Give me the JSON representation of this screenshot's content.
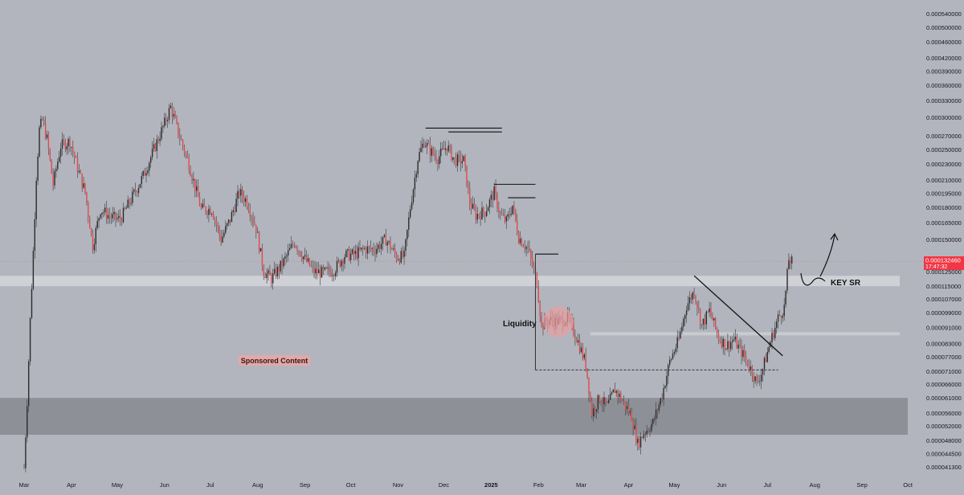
{
  "colors": {
    "background": "#b2b5be",
    "candle_up": "#2b2b2b",
    "candle_down": "#e04a4a",
    "wick": "#3a3a3a",
    "demand_zone": "#8e9097",
    "key_sr_band": "#d4d6dc",
    "support_band": "#c9cbd1",
    "last_price_tag": "#f23645",
    "liquidity_circle": "#e8a0a0",
    "sponsored_bg": "#e2a9a9"
  },
  "price_tag": {
    "price": "0.000132460",
    "countdown": "17:47:32"
  },
  "annotations": {
    "key_sr": "KEY SR",
    "liquidity": "Liquidity",
    "sponsored": "Sponsored Content"
  },
  "chart_data": {
    "type": "candlestick",
    "x_ticks": [
      "Mar",
      "Apr",
      "May",
      "Jun",
      "Jul",
      "Aug",
      "Sep",
      "Oct",
      "Nov",
      "Dec",
      "2025",
      "Feb",
      "Mar",
      "Apr",
      "May",
      "Jun",
      "Jul",
      "Aug",
      "Sep",
      "Oct"
    ],
    "y_ticks": [
      "0.000540000",
      "0.000500000",
      "0.000460000",
      "0.000420000",
      "0.000390000",
      "0.000360000",
      "0.000330000",
      "0.000300000",
      "0.000270000",
      "0.000250000",
      "0.000230000",
      "0.000210000",
      "0.000195000",
      "0.000180000",
      "0.000165000",
      "0.000150000",
      "0.000135000",
      "0.000125000",
      "0.000115000",
      "0.000107000",
      "0.000099000",
      "0.000091000",
      "0.000083000",
      "0.000077000",
      "0.000071000",
      "0.000066000",
      "0.000061000",
      "0.000056000",
      "0.000052000",
      "0.000048000",
      "0.000044500",
      "0.000041300"
    ],
    "y_scale": "log",
    "ylim": [
      3.96e-05,
      0.000565
    ],
    "last_price": 0.00013246,
    "close_path": [
      [
        "2024-03-01",
        4.1e-05
      ],
      [
        "2024-03-03",
        6e-05
      ],
      [
        "2024-03-05",
        9.5e-05
      ],
      [
        "2024-03-07",
        0.00014
      ],
      [
        "2024-03-09",
        0.000215
      ],
      [
        "2024-03-11",
        0.00028
      ],
      [
        "2024-03-13",
        0.000295
      ],
      [
        "2024-03-16",
        0.000265
      ],
      [
        "2024-03-20",
        0.000205
      ],
      [
        "2024-03-25",
        0.000255
      ],
      [
        "2024-03-31",
        0.000262
      ],
      [
        "2024-04-05",
        0.000225
      ],
      [
        "2024-04-10",
        0.000196
      ],
      [
        "2024-04-15",
        0.000145
      ],
      [
        "2024-04-20",
        0.000178
      ],
      [
        "2024-04-27",
        0.00017
      ],
      [
        "2024-05-03",
        0.000168
      ],
      [
        "2024-05-10",
        0.000188
      ],
      [
        "2024-05-18",
        0.000215
      ],
      [
        "2024-05-26",
        0.000255
      ],
      [
        "2024-06-01",
        0.00029
      ],
      [
        "2024-06-05",
        0.000318
      ],
      [
        "2024-06-10",
        0.000275
      ],
      [
        "2024-06-17",
        0.00023
      ],
      [
        "2024-06-25",
        0.000178
      ],
      [
        "2024-07-02",
        0.000178
      ],
      [
        "2024-07-08",
        0.00015
      ],
      [
        "2024-07-14",
        0.000168
      ],
      [
        "2024-07-20",
        0.000196
      ],
      [
        "2024-07-25",
        0.000186
      ],
      [
        "2024-07-31",
        0.00016
      ],
      [
        "2024-08-05",
        0.000125
      ],
      [
        "2024-08-10",
        0.00012
      ],
      [
        "2024-08-18",
        0.000132
      ],
      [
        "2024-08-25",
        0.000148
      ],
      [
        "2024-09-01",
        0.000134
      ],
      [
        "2024-09-07",
        0.000125
      ],
      [
        "2024-09-13",
        0.000124
      ],
      [
        "2024-09-20",
        0.000126
      ],
      [
        "2024-09-27",
        0.000137
      ],
      [
        "2024-10-04",
        0.000138
      ],
      [
        "2024-10-10",
        0.000142
      ],
      [
        "2024-10-17",
        0.000142
      ],
      [
        "2024-10-24",
        0.00015
      ],
      [
        "2024-10-31",
        0.000136
      ],
      [
        "2024-11-05",
        0.000136
      ],
      [
        "2024-11-09",
        0.00018
      ],
      [
        "2024-11-14",
        0.000238
      ],
      [
        "2024-11-18",
        0.000262
      ],
      [
        "2024-11-22",
        0.000248
      ],
      [
        "2024-11-27",
        0.000238
      ],
      [
        "2024-12-03",
        0.000255
      ],
      [
        "2024-12-08",
        0.000235
      ],
      [
        "2024-12-14",
        0.000235
      ],
      [
        "2024-12-18",
        0.000185
      ],
      [
        "2024-12-22",
        0.000172
      ],
      [
        "2024-12-28",
        0.000176
      ],
      [
        "2025-01-03",
        0.000196
      ],
      [
        "2025-01-07",
        0.000172
      ],
      [
        "2025-01-11",
        0.000166
      ],
      [
        "2025-01-15",
        0.000182
      ],
      [
        "2025-01-19",
        0.000152
      ],
      [
        "2025-01-25",
        0.000142
      ],
      [
        "2025-01-31",
        0.000118
      ],
      [
        "2025-02-03",
        9.2e-05
      ],
      [
        "2025-02-08",
        9.5e-05
      ],
      [
        "2025-02-14",
        9.4e-05
      ],
      [
        "2025-02-20",
        9.6e-05
      ],
      [
        "2025-02-26",
        8.6e-05
      ],
      [
        "2025-03-04",
        7.4e-05
      ],
      [
        "2025-03-08",
        5.6e-05
      ],
      [
        "2025-03-13",
        6.1e-05
      ],
      [
        "2025-03-18",
        5.8e-05
      ],
      [
        "2025-03-23",
        6.4e-05
      ],
      [
        "2025-03-28",
        6e-05
      ],
      [
        "2025-04-03",
        5.5e-05
      ],
      [
        "2025-04-07",
        4.7e-05
      ],
      [
        "2025-04-11",
        5e-05
      ],
      [
        "2025-04-17",
        5.3e-05
      ],
      [
        "2025-04-23",
        6.2e-05
      ],
      [
        "2025-04-28",
        7.5e-05
      ],
      [
        "2025-05-04",
        8.5e-05
      ],
      [
        "2025-05-09",
        0.000103
      ],
      [
        "2025-05-14",
        0.000112
      ],
      [
        "2025-05-19",
        9.2e-05
      ],
      [
        "2025-05-24",
        0.0001
      ],
      [
        "2025-05-30",
        8.6e-05
      ],
      [
        "2025-06-04",
        8.2e-05
      ],
      [
        "2025-06-09",
        8.5e-05
      ],
      [
        "2025-06-15",
        7.8e-05
      ],
      [
        "2025-06-21",
        7.1e-05
      ],
      [
        "2025-06-24",
        6.6e-05
      ],
      [
        "2025-06-28",
        7.2e-05
      ],
      [
        "2025-07-03",
        8.4e-05
      ],
      [
        "2025-07-08",
        9.6e-05
      ],
      [
        "2025-07-12",
        0.000102
      ],
      [
        "2025-07-15",
        0.000134
      ],
      [
        "2025-07-17",
        0.000132
      ]
    ],
    "zones": [
      {
        "name": "demand-zone",
        "from": 4.95e-05,
        "to": 6.1e-05
      },
      {
        "name": "key-sr-band",
        "from": 0.000115,
        "to": 0.000122
      }
    ]
  }
}
